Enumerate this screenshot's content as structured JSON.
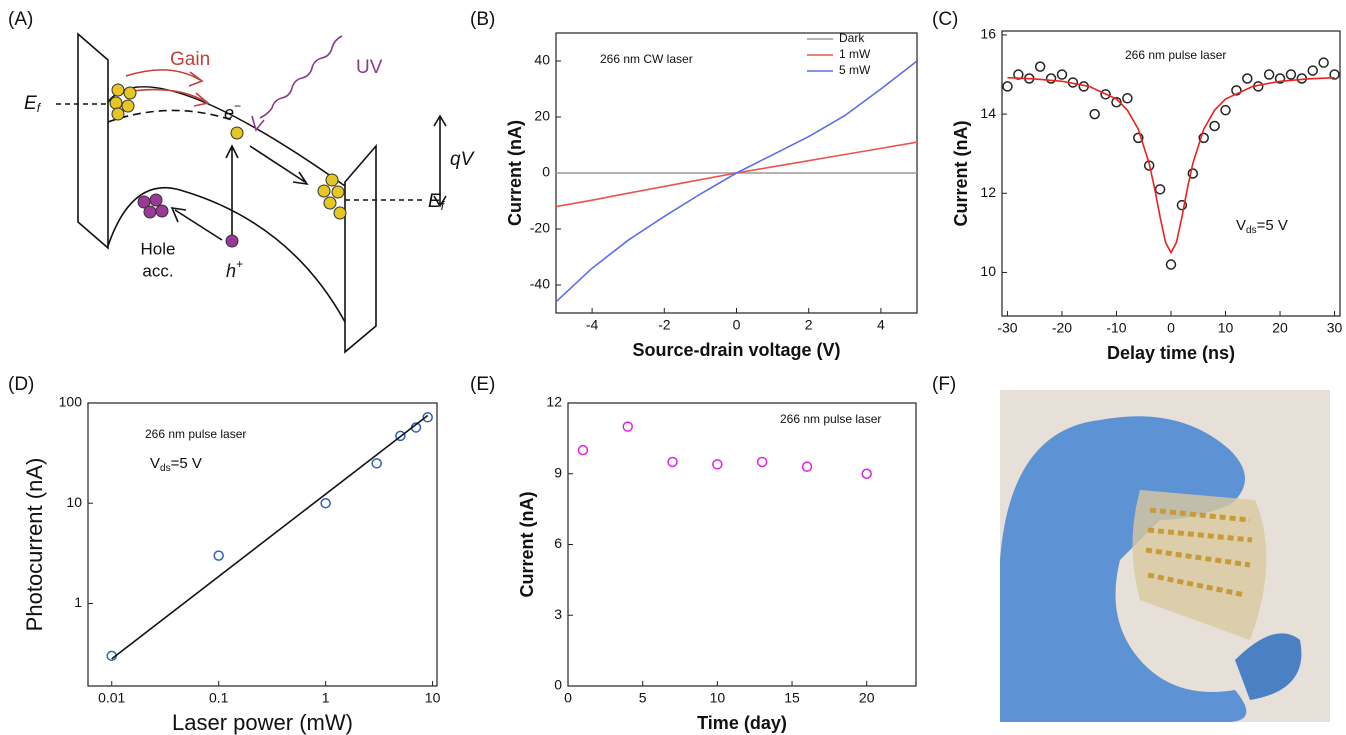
{
  "panel_labels": [
    "(A)",
    "(B)",
    "(C)",
    "(D)",
    "(E)",
    "(F)"
  ],
  "diagram": {
    "gain": "Gain",
    "uv": "UV",
    "ef_left": [
      "E",
      "f"
    ],
    "electron": [
      "e",
      "−"
    ],
    "qv": "qV",
    "ef_right": [
      "E",
      "f"
    ],
    "hole_line1": "Hole",
    "hole_line2": "acc.",
    "hole": [
      "h",
      "+"
    ]
  },
  "chart_data": [
    {
      "type": "line",
      "annotation": "266 nm CW laser",
      "ylabel": "Current (nA)",
      "xlabel": "Source-drain voltage (V)",
      "xlim": [
        -5,
        5
      ],
      "xticks": [
        -4,
        -2,
        0,
        2,
        4
      ],
      "ylim": [
        -50,
        50
      ],
      "yticks": [
        -40,
        -20,
        0,
        20,
        40
      ],
      "legend": "upper right",
      "series": [
        {
          "name": "Dark",
          "color": "#999999",
          "kind": "line",
          "x": [
            -5,
            -4,
            -3,
            -2,
            -1,
            0,
            1,
            2,
            3,
            4,
            5
          ],
          "values": [
            0,
            0,
            0,
            0,
            0,
            0,
            0,
            0,
            0,
            0,
            0
          ]
        },
        {
          "name": "1 mW",
          "color": "#e8554e",
          "kind": "line",
          "x": [
            -5,
            -4,
            -3,
            -2,
            -1,
            0,
            1,
            2,
            3,
            4,
            5
          ],
          "values": [
            -12,
            -9.7,
            -7.2,
            -4.8,
            -2.4,
            0,
            2.2,
            4.4,
            6.6,
            8.8,
            11
          ]
        },
        {
          "name": "5 mW",
          "color": "#5b6ee8",
          "kind": "line",
          "x": [
            -5,
            -4,
            -3,
            -2,
            -1,
            0,
            1,
            2,
            3,
            4,
            5
          ],
          "values": [
            -46,
            -34,
            -24,
            -15.5,
            -7.5,
            0,
            6.5,
            13,
            20.5,
            30,
            40
          ]
        }
      ]
    },
    {
      "type": "scatter",
      "annotation": "266 nm pulse laser",
      "annotation2": [
        "V",
        "ds",
        "=5 V"
      ],
      "ylabel": "Current (nA)",
      "xlabel": "Delay time (ns)",
      "xlim": [
        -31,
        31
      ],
      "xticks": [
        -30,
        -20,
        -10,
        0,
        10,
        20,
        30
      ],
      "ylim": [
        8.9,
        16.1
      ],
      "yticks": [
        10,
        12,
        14,
        16
      ],
      "series": [
        {
          "color": "#222222",
          "kind": "scatter",
          "x": [
            -30,
            -28,
            -26,
            -24,
            -22,
            -20,
            -18,
            -16,
            -14,
            -12,
            -10,
            -8,
            -6,
            -4,
            -2,
            0,
            2,
            4,
            6,
            8,
            10,
            12,
            14,
            16,
            18,
            20,
            22,
            24,
            26,
            28,
            30
          ],
          "values": [
            14.7,
            15.0,
            14.9,
            15.2,
            14.9,
            15.0,
            14.8,
            14.7,
            14.0,
            14.5,
            14.3,
            14.4,
            13.4,
            12.7,
            12.1,
            10.2,
            11.7,
            12.5,
            13.4,
            13.7,
            14.1,
            14.6,
            14.9,
            14.7,
            15.0,
            14.9,
            15.0,
            14.9,
            15.1,
            15.3,
            15.0
          ]
        },
        {
          "color": "#e8231e",
          "kind": "line",
          "x": [
            -30,
            -25,
            -20,
            -15,
            -10,
            -8,
            -6,
            -4,
            -3,
            -2,
            -1,
            0,
            1,
            2,
            3,
            4,
            6,
            8,
            10,
            15,
            20,
            25,
            30
          ],
          "values": [
            14.92,
            14.89,
            14.83,
            14.7,
            14.38,
            14.1,
            13.62,
            12.75,
            12.12,
            11.4,
            10.76,
            10.5,
            10.76,
            11.4,
            12.12,
            12.75,
            13.62,
            14.1,
            14.38,
            14.7,
            14.83,
            14.89,
            14.92
          ]
        }
      ]
    },
    {
      "type": "scatter",
      "annotation": "266 nm pulse laser",
      "annotation2": [
        "V",
        "ds",
        "=5 V"
      ],
      "ylabel": "Photocurrent (nA)",
      "xlabel": "Laser power (mW)",
      "xscale": "log",
      "yscale": "log",
      "xlim": [
        0.006,
        11
      ],
      "xticks": [
        0.01,
        0.1,
        1,
        10
      ],
      "ylim": [
        0.15,
        100
      ],
      "yticks": [
        1,
        10,
        100
      ],
      "series": [
        {
          "color": "#2f5fc0",
          "kind": "scatter",
          "x": [
            0.01,
            0.1,
            1,
            3,
            5,
            7,
            9
          ],
          "values": [
            0.3,
            3,
            10,
            25,
            47,
            57,
            72
          ]
        },
        {
          "color": "#111111",
          "kind": "line",
          "x": [
            0.01,
            9
          ],
          "values": [
            0.28,
            75
          ]
        }
      ]
    },
    {
      "type": "scatter",
      "annotation": "266 nm pulse laser",
      "ylabel": "Current (nA)",
      "xlabel": "Time (day)",
      "xlim": [
        0,
        23.3
      ],
      "xticks": [
        0,
        5,
        10,
        15,
        20
      ],
      "ylim": [
        0,
        12
      ],
      "yticks": [
        0,
        3,
        6,
        9,
        12
      ],
      "series": [
        {
          "color": "#e020e0",
          "kind": "scatter",
          "x": [
            1,
            4,
            7,
            10,
            13,
            16,
            20
          ],
          "values": [
            10,
            11,
            9.5,
            9.4,
            9.5,
            9.3,
            9
          ]
        }
      ]
    }
  ]
}
